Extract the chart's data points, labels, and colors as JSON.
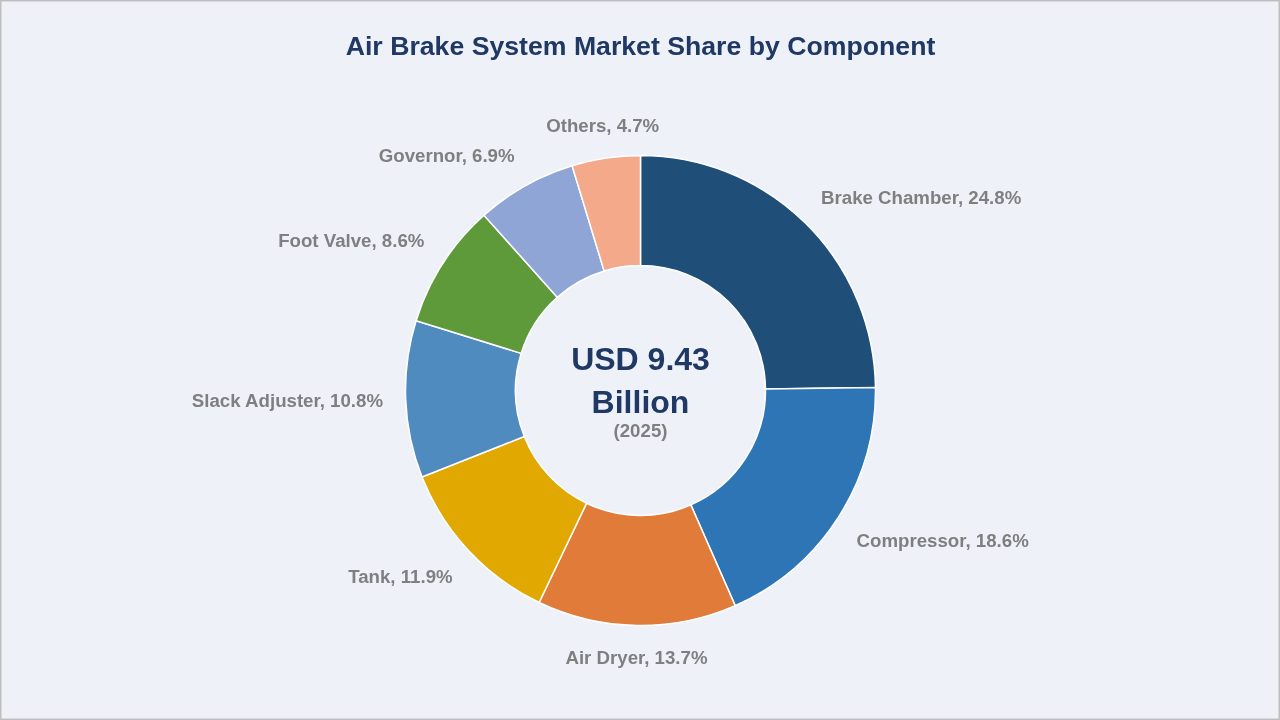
{
  "chart_data": {
    "type": "donut",
    "title": "Air Brake System Market Share by Component",
    "categories": [
      "Brake Chamber",
      "Compressor",
      "Air Dryer",
      "Tank",
      "Slack Adjuster",
      "Foot Valve",
      "Governor",
      "Others"
    ],
    "values": [
      24.8,
      18.6,
      13.7,
      11.9,
      10.8,
      8.6,
      6.9,
      4.7
    ],
    "value_labels": [
      "24.8%",
      "18.6%",
      "13.7%",
      "11.9%",
      "10.8%",
      "8.6%",
      "6.9%",
      "4.7%"
    ],
    "colors": [
      "#1f4e79",
      "#2e75b6",
      "#e07b39",
      "#e0a800",
      "#4f8bbf",
      "#5f9a3a",
      "#8fa5d6",
      "#f4a98a"
    ],
    "annotations": [
      "USD 9.43 Billion",
      "(2025)"
    ],
    "legend": false
  }
}
